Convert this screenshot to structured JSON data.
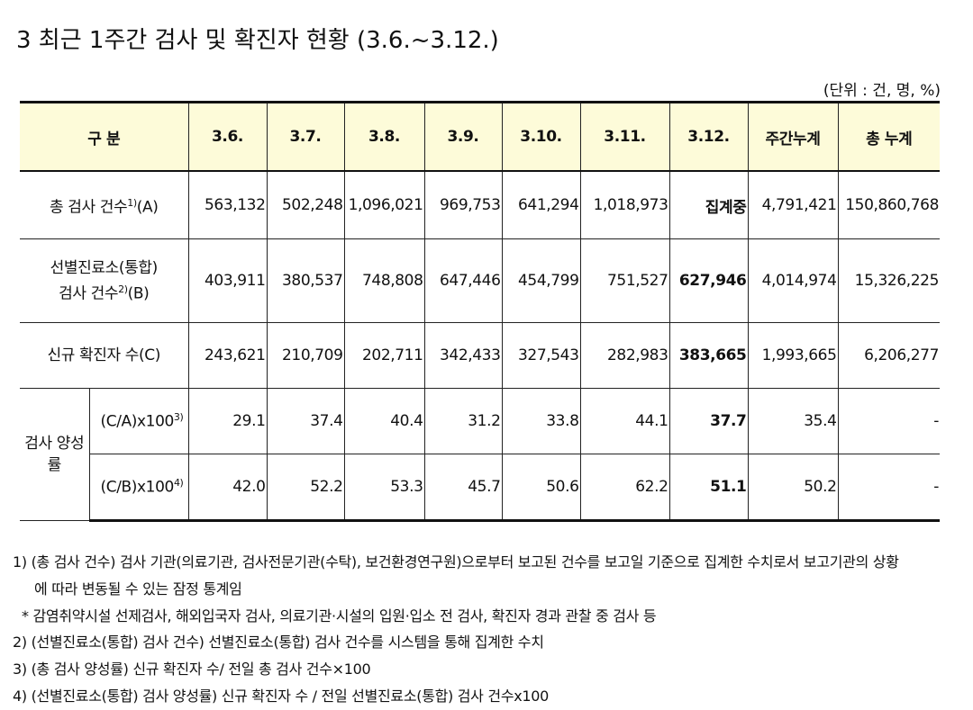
{
  "title": "3  최근 1주간 검사 및 확진자 현황 (3.6.~3.12.)",
  "unit": "(단위 : 건, 명, %)",
  "table": {
    "header": [
      "구 분",
      "3.6.",
      "3.7.",
      "3.8.",
      "3.9.",
      "3.10.",
      "3.11.",
      "3.12.",
      "주간누계",
      "총 누계"
    ],
    "rows": [
      {
        "label": [
          "총 검사 건수"
        ],
        "note": "1)",
        "suffix": "(A)",
        "cells": [
          "563,132",
          "502,248",
          "1,096,021",
          "969,753",
          "641,294",
          "1,018,973",
          "집계중",
          "4,791,421",
          "150,860,768"
        ]
      },
      {
        "label": [
          "선별진료소(통합)",
          "검사 건수"
        ],
        "note": "2)",
        "suffix": "(B)",
        "cells": [
          "403,911",
          "380,537",
          "748,808",
          "647,446",
          "454,799",
          "751,527",
          "627,946",
          "4,014,974",
          "15,326,225"
        ]
      },
      {
        "label": [
          "신규 확진자 수(C)"
        ],
        "cells": [
          "243,621",
          "210,709",
          "202,711",
          "342,433",
          "327,543",
          "282,983",
          "383,665",
          "1,993,665",
          "6,206,277"
        ]
      }
    ],
    "group": {
      "label": "검사 양성률",
      "subrows": [
        {
          "label": [
            "(C/A)x100"
          ],
          "note": "3)",
          "cells": [
            "29.1",
            "37.4",
            "40.4",
            "31.2",
            "33.8",
            "44.1",
            "37.7",
            "35.4",
            "-"
          ]
        },
        {
          "label": [
            "(C/B)x100"
          ],
          "note": "4)",
          "cells": [
            "42.0",
            "52.2",
            "53.3",
            "45.7",
            "50.6",
            "62.2",
            "51.1",
            "50.2",
            "-"
          ]
        }
      ]
    }
  },
  "notes": [
    "1) (총 검사 건수) 검사 기관(의료기관, 검사전문기관(수탁), 보건환경연구원)으로부터 보고된 건수를 보고일 기준으로 집계한   수치로서 보고기관의 상황",
    "에 따라 변동될 수 있는 잠정 통계임",
    "* 감염취약시설 선제검사, 해외입국자 검사, 의료기관·시설의 입원·입소 전 검사, 확진자 경과 관찰 중 검사 등",
    "2) (선별진료소(통합) 검사 건수) 선별진료소(통합) 검사 건수를 시스템을 통해 집계한 수치",
    "3) (총 검사 양성률) 신규 확진자 수/ 전일 총 검사 건수×100",
    "4) (선별진료소(통합) 검사 양성률) 신규 확진자 수 / 전일 선별진료소(통합) 검사 건수x100"
  ]
}
